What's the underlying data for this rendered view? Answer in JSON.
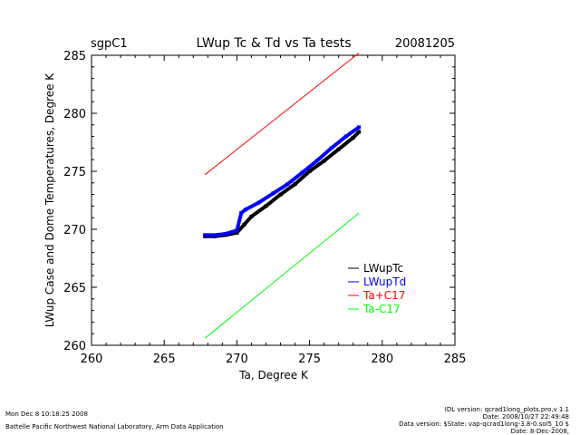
{
  "header": {
    "site": "sgpC1",
    "title": "LWup Tc & Td vs Ta tests",
    "date": "20081205"
  },
  "chart_data": {
    "type": "scatter",
    "title": "LWup Tc & Td vs Ta tests",
    "xlabel": "Ta, Degree K",
    "ylabel": "LWup Case and Dome Temperatures, Degree K",
    "xlim": [
      260,
      285
    ],
    "ylim": [
      260,
      285
    ],
    "xticks": [
      "260",
      "265",
      "270",
      "275",
      "280",
      "285"
    ],
    "yticks": [
      "260",
      "265",
      "270",
      "275",
      "280",
      "285"
    ],
    "legend_position": "lower-right",
    "series": [
      {
        "name": "LWupTc",
        "color": "#000000",
        "x": [
          267.8,
          268.5,
          269.2,
          270.0,
          270.5,
          271.0,
          272.0,
          273.0,
          274.0,
          275.0,
          276.0,
          277.0,
          278.0,
          278.4
        ],
        "y": [
          269.4,
          269.4,
          269.5,
          269.7,
          270.4,
          271.1,
          272.0,
          273.0,
          273.9,
          275.0,
          275.9,
          276.9,
          277.9,
          278.4
        ]
      },
      {
        "name": "LWupTd",
        "color": "#0000ff",
        "x": [
          267.8,
          268.5,
          269.2,
          270.0,
          270.3,
          270.6,
          271.5,
          272.5,
          273.5,
          274.5,
          275.5,
          276.5,
          277.5,
          278.4
        ],
        "y": [
          269.5,
          269.5,
          269.6,
          269.9,
          271.4,
          271.7,
          272.3,
          273.1,
          273.9,
          274.9,
          275.9,
          277.0,
          278.0,
          278.8
        ]
      },
      {
        "name": "Ta+C17",
        "color": "#ff0000",
        "x": [
          267.8,
          278.4
        ],
        "y": [
          274.7,
          285.2
        ]
      },
      {
        "name": "Ta-C17",
        "color": "#00ff00",
        "x": [
          267.8,
          278.4
        ],
        "y": [
          260.6,
          271.4
        ]
      }
    ]
  },
  "footer": {
    "left_line1": "Mon Dec  8 10:18:25 2008",
    "left_line2": "Battelle Pacific Northwest National Laboratory, Arm Data Application",
    "right_line1": "IDL version: qcrad1long_plots.pro,v 1.1",
    "right_line2": "Date: 2008/10/27 22:49:48",
    "right_line3": "Data version: $State: vap-qcrad1long-3.8-0.sol5_10 $",
    "right_line4": "Date: 8-Dec-2008,"
  }
}
